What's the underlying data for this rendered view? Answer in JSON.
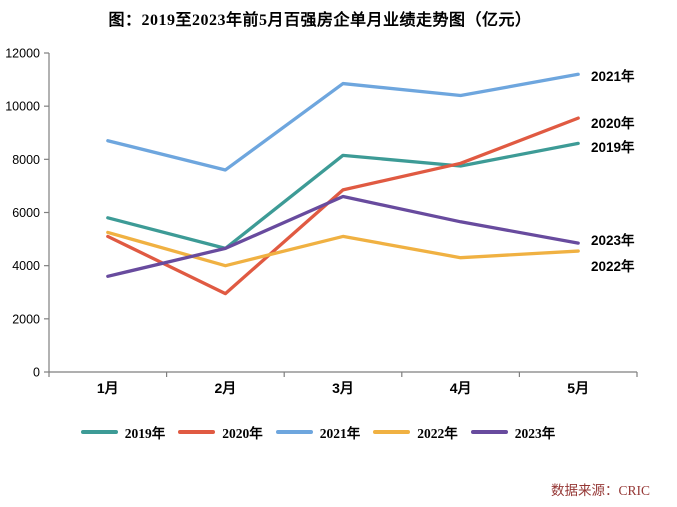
{
  "page": {
    "background": "#FFFFFF"
  },
  "title": "图：2019至2023年前5月百强房企单月业绩走势图（亿元）",
  "source": {
    "text": "数据来源：CRIC",
    "color": "#953735"
  },
  "axis": {
    "color": "#7F7F7F",
    "label_color": "#000000"
  },
  "chart_data": {
    "type": "line",
    "title": "图：2019至2023年前5月百强房企单月业绩走势图（亿元）",
    "categories": [
      "1月",
      "2月",
      "3月",
      "4月",
      "5月"
    ],
    "xlabel": "",
    "ylabel": "",
    "ylim": [
      0,
      12000
    ],
    "yticks": [
      0,
      2000,
      4000,
      6000,
      8000,
      10000,
      12000
    ],
    "grid": false,
    "legend_position": "bottom",
    "series": [
      {
        "name": "2019年",
        "color": "#3D9B96",
        "values": [
          5800,
          4650,
          8150,
          7750,
          8600
        ]
      },
      {
        "name": "2020年",
        "color": "#E05A42",
        "values": [
          5100,
          2950,
          6850,
          7850,
          9550
        ]
      },
      {
        "name": "2021年",
        "color": "#6EA6DE",
        "values": [
          8700,
          7600,
          10850,
          10400,
          11200
        ]
      },
      {
        "name": "2022年",
        "color": "#F0B142",
        "values": [
          5250,
          4000,
          5100,
          4300,
          4550
        ]
      },
      {
        "name": "2023年",
        "color": "#684B9E",
        "values": [
          3600,
          4650,
          6600,
          5650,
          4850
        ]
      }
    ],
    "end_label_order_top_to_bottom": [
      "2021年",
      "2020年",
      "2019年",
      "2023年",
      "2022年"
    ]
  }
}
